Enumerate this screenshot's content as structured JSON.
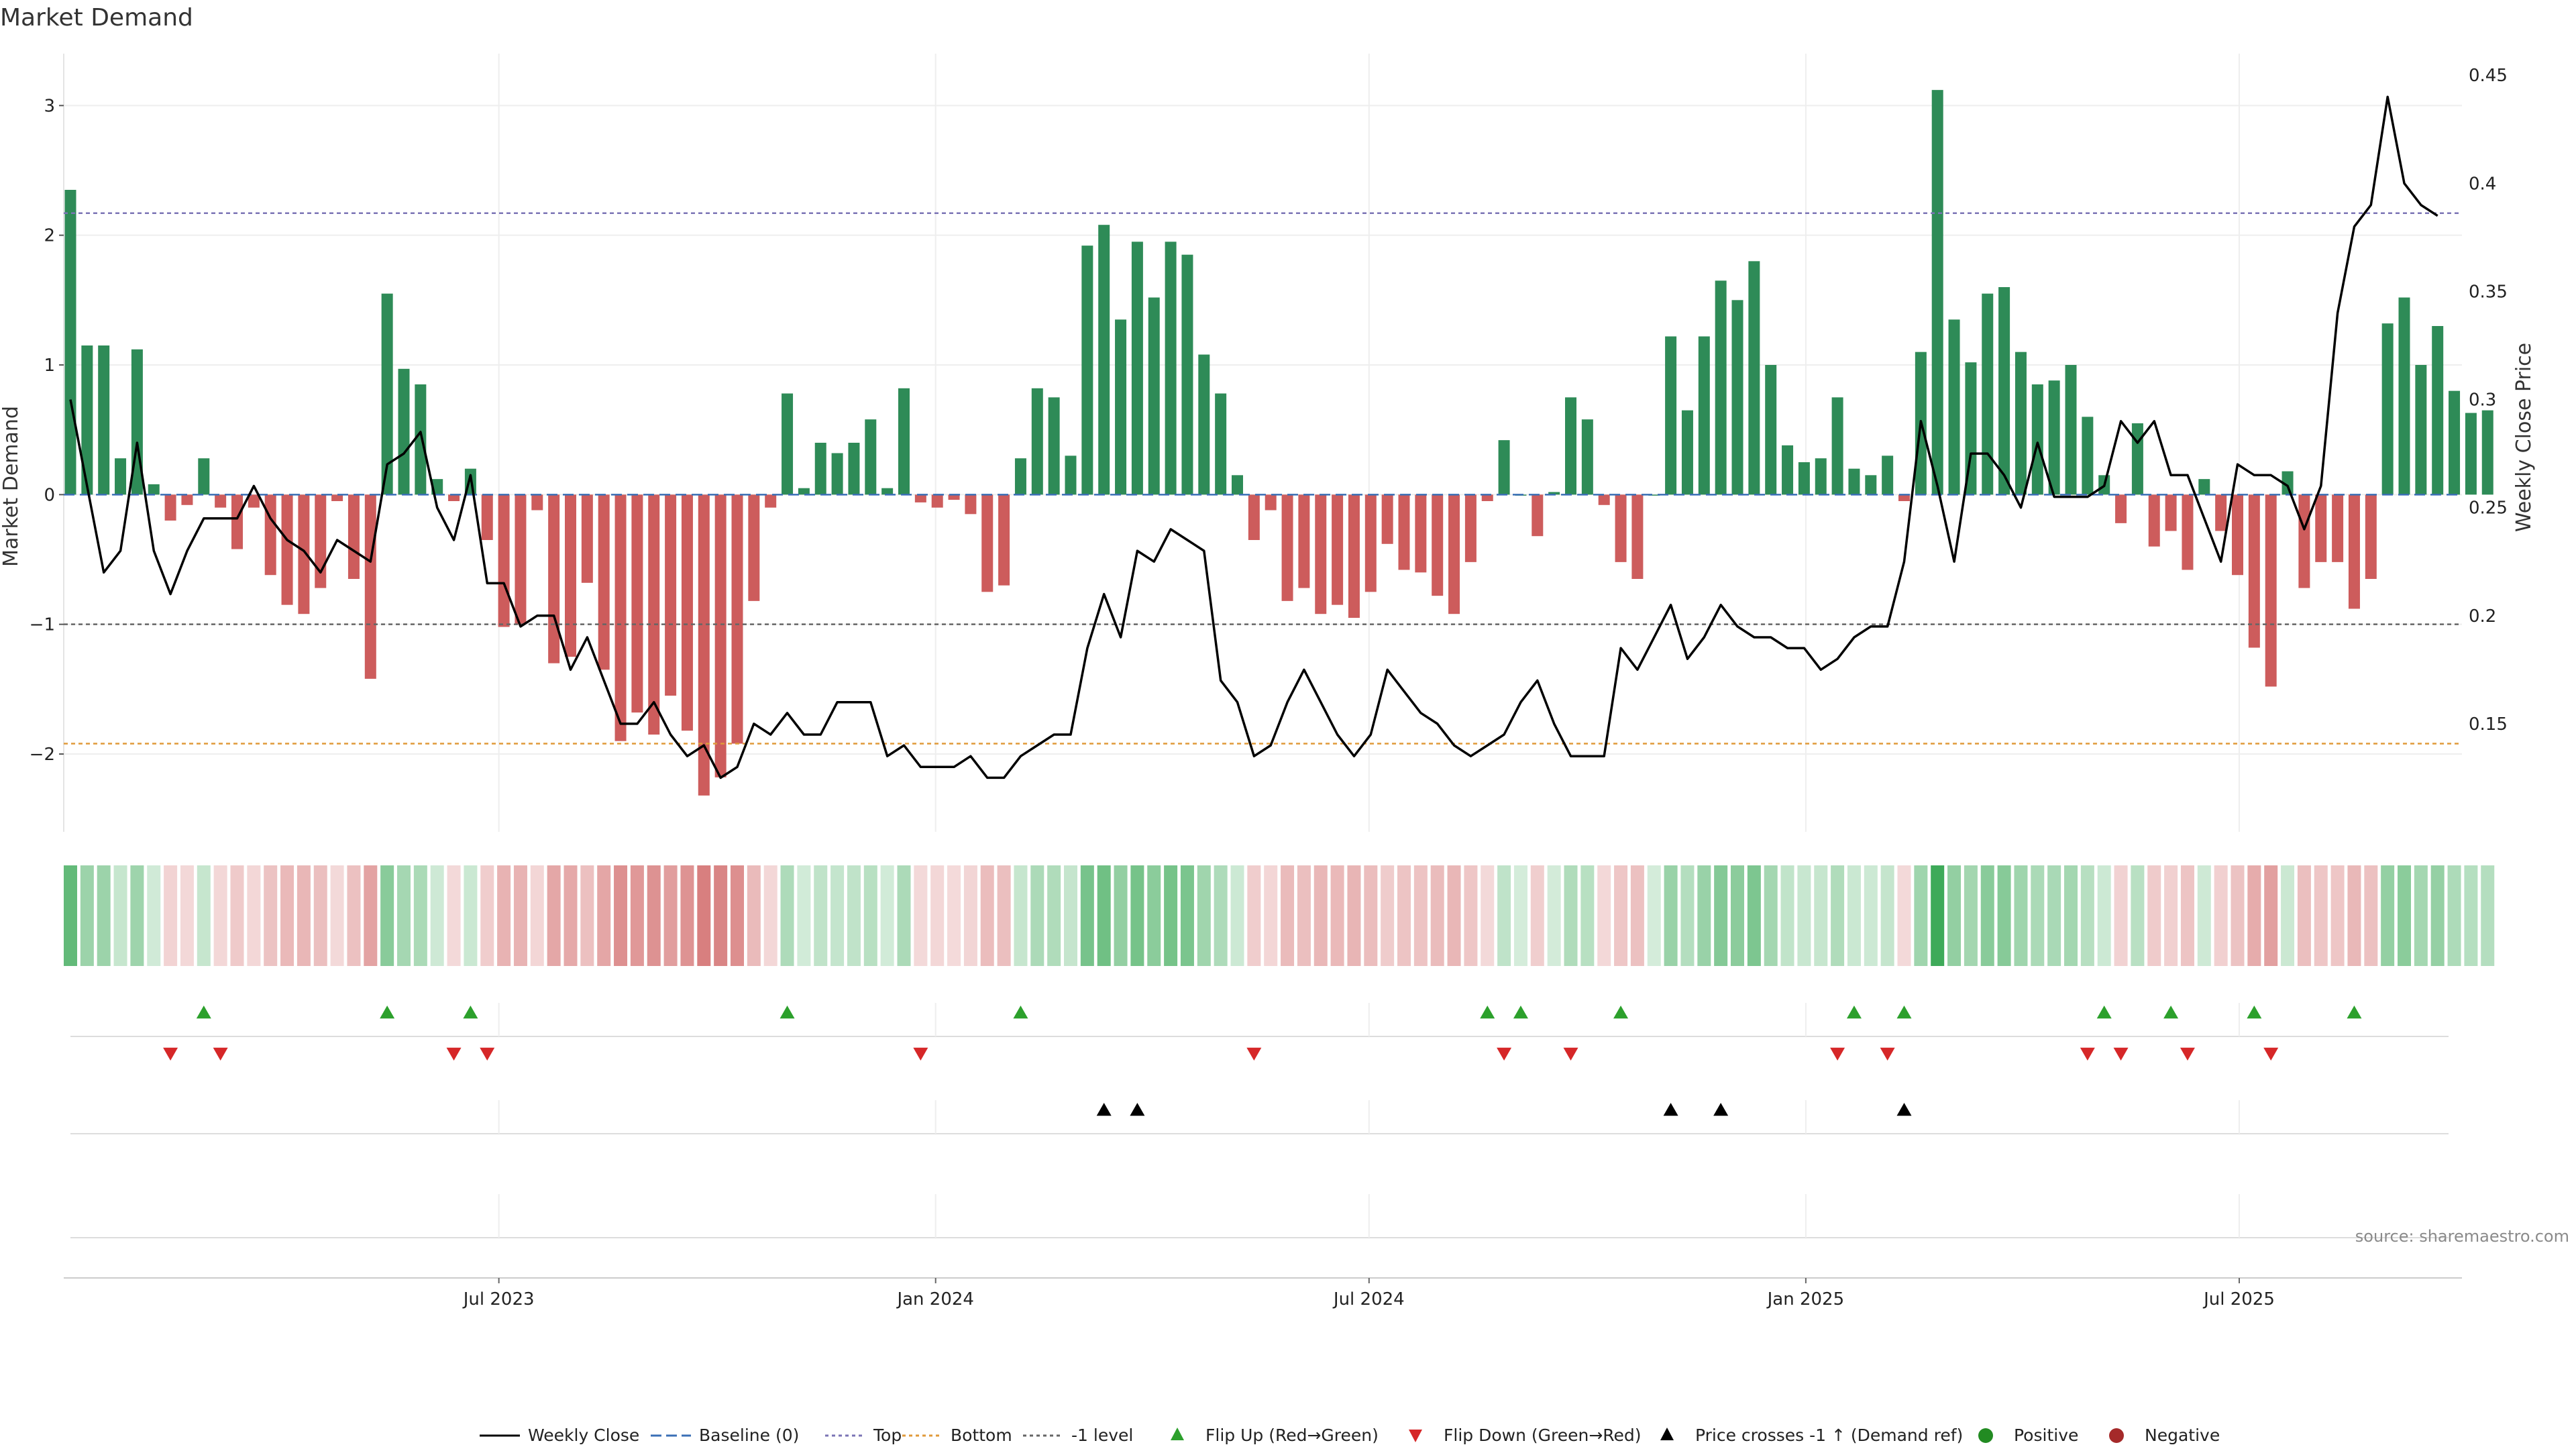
{
  "chart_data": {
    "type": "bar",
    "title": "Market Demand",
    "ylabel_left": "Market Demand",
    "ylabel_right": "Weekly Close Price",
    "ylim_left": [
      -2.6,
      3.4
    ],
    "ylim_right": [
      0.1,
      0.46
    ],
    "yticks_left": [
      3,
      2,
      1,
      0,
      -1,
      -2
    ],
    "ytick_labels_left": [
      "3",
      "2",
      "1",
      "0",
      "−1",
      "−2"
    ],
    "yticks_right": [
      0.45,
      0.4,
      0.35,
      0.3,
      0.25,
      0.2,
      0.15
    ],
    "ytick_labels_right": [
      "0.45",
      "0.4",
      "0.35",
      "0.3",
      "0.25",
      "0.2",
      "0.15"
    ],
    "x_start": "2023-01-09",
    "x_end": "2025-12-22",
    "x_tick_positions": [
      25.7,
      51.9,
      77.9,
      104.1,
      130.1
    ],
    "x_tick_labels": [
      "Jul 2023",
      "Jan 2024",
      "Jul 2024",
      "Jan 2025",
      "Jul 2025"
    ],
    "weekly_demand": [
      2.35,
      1.15,
      1.15,
      0.28,
      1.12,
      0.08,
      -0.2,
      -0.08,
      0.28,
      -0.1,
      -0.42,
      -0.1,
      -0.62,
      -0.85,
      -0.92,
      -0.72,
      -0.05,
      -0.65,
      -1.42,
      1.55,
      0.97,
      0.85,
      0.12,
      -0.05,
      0.2,
      -0.35,
      -1.02,
      -1.0,
      -0.12,
      -1.3,
      -1.25,
      -0.68,
      -1.35,
      -1.9,
      -1.68,
      -1.85,
      -1.55,
      -1.82,
      -2.32,
      -2.18,
      -1.92,
      -0.82,
      -0.1,
      0.78,
      0.05,
      0.4,
      0.32,
      0.4,
      0.58,
      0.05,
      0.82,
      -0.06,
      -0.1,
      -0.04,
      -0.15,
      -0.75,
      -0.7,
      0.28,
      0.82,
      0.75,
      0.3,
      1.92,
      2.08,
      1.35,
      1.95,
      1.52,
      1.95,
      1.85,
      1.08,
      0.78,
      0.15,
      -0.35,
      -0.12,
      -0.82,
      -0.72,
      -0.92,
      -0.85,
      -0.95,
      -0.75,
      -0.38,
      -0.58,
      -0.6,
      -0.78,
      -0.92,
      -0.52,
      -0.05,
      0.42,
      0.0,
      -0.32,
      0.02,
      0.75,
      0.58,
      -0.08,
      -0.52,
      -0.65,
      0.0,
      1.22,
      0.65,
      1.22,
      1.65,
      1.5,
      1.8,
      1.0,
      0.38,
      0.25,
      0.28,
      0.75,
      0.2,
      0.15,
      0.3,
      -0.05,
      1.1,
      3.12,
      1.35,
      1.02,
      1.55,
      1.6,
      1.1,
      0.85,
      0.88,
      1.0,
      0.6,
      0.15,
      -0.22,
      0.55,
      -0.4,
      -0.28,
      -0.58,
      0.12,
      -0.28,
      -0.62,
      -1.18,
      -1.48,
      0.18,
      -0.72,
      -0.52,
      -0.52,
      -0.88,
      -0.65,
      1.32,
      1.52,
      1.0,
      1.3,
      0.8,
      0.63,
      0.65
    ],
    "weekly_close": [
      0.3,
      0.26,
      0.22,
      0.23,
      0.28,
      0.23,
      0.21,
      0.23,
      0.245,
      0.245,
      0.245,
      0.26,
      0.245,
      0.235,
      0.23,
      0.22,
      0.235,
      0.23,
      0.225,
      0.27,
      0.275,
      0.285,
      0.25,
      0.235,
      0.265,
      0.215,
      0.215,
      0.195,
      0.2,
      0.2,
      0.175,
      0.19,
      0.17,
      0.15,
      0.15,
      0.16,
      0.145,
      0.135,
      0.14,
      0.125,
      0.13,
      0.15,
      0.145,
      0.155,
      0.145,
      0.145,
      0.16,
      0.16,
      0.16,
      0.135,
      0.14,
      0.13,
      0.13,
      0.13,
      0.135,
      0.125,
      0.125,
      0.135,
      0.14,
      0.145,
      0.145,
      0.185,
      0.21,
      0.19,
      0.23,
      0.225,
      0.24,
      0.235,
      0.23,
      0.17,
      0.16,
      0.135,
      0.14,
      0.16,
      0.175,
      0.16,
      0.145,
      0.135,
      0.145,
      0.175,
      0.165,
      0.155,
      0.15,
      0.14,
      0.135,
      0.14,
      0.145,
      0.16,
      0.17,
      0.15,
      0.135,
      0.135,
      0.135,
      0.185,
      0.175,
      0.19,
      0.205,
      0.18,
      0.19,
      0.205,
      0.195,
      0.19,
      0.19,
      0.185,
      0.185,
      0.175,
      0.18,
      0.19,
      0.195,
      0.195,
      0.225,
      0.29,
      0.26,
      0.225,
      0.275,
      0.275,
      0.265,
      0.25,
      0.28,
      0.255,
      0.255,
      0.255,
      0.26,
      0.29,
      0.28,
      0.29,
      0.265,
      0.265,
      0.245,
      0.225,
      0.27,
      0.265,
      0.265,
      0.26,
      0.24,
      0.26,
      0.34,
      0.38,
      0.39,
      0.44,
      0.4,
      0.39,
      0.385
    ],
    "reference_lines": [
      {
        "name": "Top",
        "value": 2.17,
        "color": "#7b74b5"
      },
      {
        "name": "-1 level",
        "value": -1.0,
        "color": "#666666"
      },
      {
        "name": "Bottom",
        "value": -1.92,
        "color": "#e09a3a"
      }
    ],
    "flip_up_weeks": [
      8,
      19,
      24,
      43,
      57,
      85,
      87,
      93,
      107,
      110,
      122,
      126,
      131,
      137
    ],
    "flip_down_weeks": [
      6,
      9,
      23,
      25,
      51,
      71,
      86,
      90,
      106,
      109,
      121,
      123,
      127,
      132
    ],
    "price_cross_weeks": [
      62,
      64,
      96,
      99,
      110
    ],
    "colors": {
      "positive": "#2e8b57",
      "negative": "#cd5c5c",
      "flip_up": "#2ca02c",
      "flip_down": "#d62728",
      "price": "#000000"
    },
    "legend": [
      {
        "label": "Weekly Close",
        "kind": "line-solid",
        "color": "#000000"
      },
      {
        "label": "Baseline (0)",
        "kind": "line-dash",
        "color": "#3b6fb6"
      },
      {
        "label": "Top",
        "kind": "line-dot",
        "color": "#7b74b5"
      },
      {
        "label": "Bottom",
        "kind": "line-dot",
        "color": "#e09a3a"
      },
      {
        "label": "-1 level",
        "kind": "line-dot",
        "color": "#666666"
      },
      {
        "label": "Flip Up (Red→Green)",
        "kind": "tri-up",
        "color": "#2ca02c"
      },
      {
        "label": "Flip Down (Green→Red)",
        "kind": "tri-down",
        "color": "#d62728"
      },
      {
        "label": "Price crosses -1 ↑ (Demand ref)",
        "kind": "tri-up",
        "color": "#000000"
      },
      {
        "label": "Positive",
        "kind": "dot",
        "color": "#228b22"
      },
      {
        "label": "Negative",
        "kind": "dot",
        "color": "#a52a2a"
      }
    ],
    "source": "source: sharemaestro.com"
  }
}
